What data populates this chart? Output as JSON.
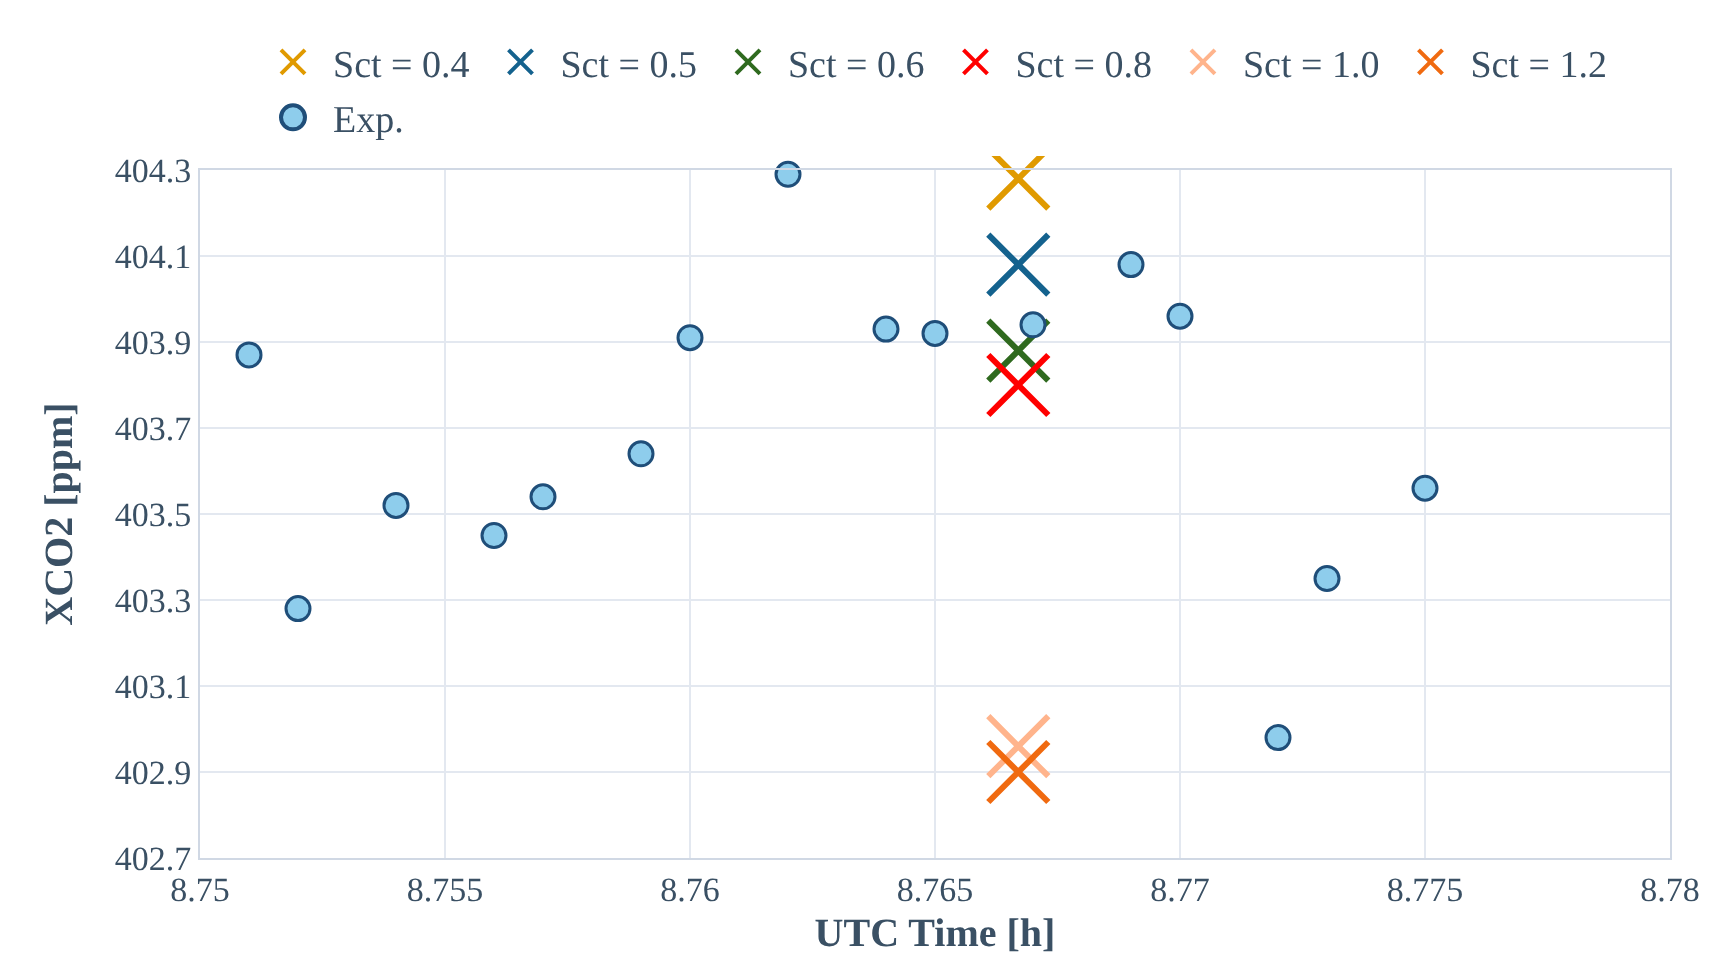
{
  "chart_data": {
    "type": "scatter",
    "xlabel": "UTC Time [h]",
    "ylabel": "XCO2 [ppm]",
    "xlim": [
      8.75,
      8.78
    ],
    "xticks": [
      8.75,
      8.755,
      8.76,
      8.765,
      8.77,
      8.775,
      8.78
    ],
    "ylim": [
      402.7,
      404.3
    ],
    "yticks": [
      402.7,
      402.9,
      403.1,
      403.3,
      403.5,
      403.7,
      403.9,
      404.1,
      404.3
    ],
    "grid": true,
    "legend": "top",
    "series": [
      {
        "name": "Sct = 0.4",
        "color": "#e09a00",
        "marker": "cross",
        "x": [
          8.7667
        ],
        "values": [
          404.28
        ]
      },
      {
        "name": "Sct = 0.5",
        "color": "#14628e",
        "marker": "cross",
        "x": [
          8.7667
        ],
        "values": [
          404.08
        ]
      },
      {
        "name": "Sct = 0.6",
        "color": "#2f6a1f",
        "marker": "cross",
        "x": [
          8.7667
        ],
        "values": [
          403.88
        ]
      },
      {
        "name": "Sct = 0.8",
        "color": "#ff0000",
        "marker": "cross",
        "x": [
          8.7667
        ],
        "values": [
          403.8
        ]
      },
      {
        "name": "Sct = 1.0",
        "color": "#ffb48c",
        "marker": "cross",
        "x": [
          8.7667
        ],
        "values": [
          402.96
        ]
      },
      {
        "name": "Sct = 1.2",
        "color": "#f06a10",
        "marker": "cross",
        "x": [
          8.7667
        ],
        "values": [
          402.9
        ]
      },
      {
        "name": "Exp.",
        "color": "#8ecdec",
        "marker": "circle",
        "x": [
          8.751,
          8.752,
          8.754,
          8.756,
          8.757,
          8.759,
          8.76,
          8.762,
          8.764,
          8.765,
          8.767,
          8.769,
          8.77,
          8.772,
          8.773,
          8.775
        ],
        "values": [
          403.87,
          403.28,
          403.52,
          403.45,
          403.54,
          403.64,
          403.91,
          404.29,
          403.93,
          403.92,
          403.94,
          404.08,
          403.96,
          402.98,
          403.35,
          403.56
        ]
      }
    ]
  }
}
